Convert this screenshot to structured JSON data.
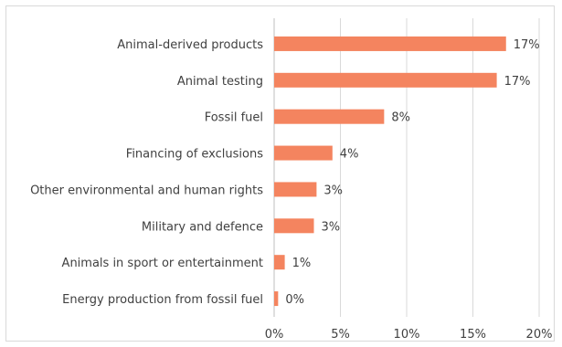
{
  "chart_data": {
    "type": "bar",
    "orientation": "horizontal",
    "categories": [
      "Animal-derived products",
      "Animal testing",
      "Fossil fuel",
      "Financing of exclusions",
      "Other environmental and human rights",
      "Military and defence",
      "Animals in sport or entertainment",
      "Energy production from fossil fuel"
    ],
    "values": [
      17.5,
      16.8,
      8.3,
      4.4,
      3.2,
      3.0,
      0.8,
      0.3
    ],
    "data_labels": [
      "17%",
      "17%",
      "8%",
      "4%",
      "3%",
      "3%",
      "1%",
      "0%"
    ],
    "xlim": [
      0,
      20
    ],
    "x_ticks": [
      0,
      5,
      10,
      15,
      20
    ],
    "x_tick_labels": [
      "0%",
      "5%",
      "10%",
      "15%",
      "20%"
    ],
    "grid": "vertical",
    "legend": "none",
    "bar_color": "#f4845f",
    "title": "",
    "xlabel": "",
    "ylabel": ""
  }
}
